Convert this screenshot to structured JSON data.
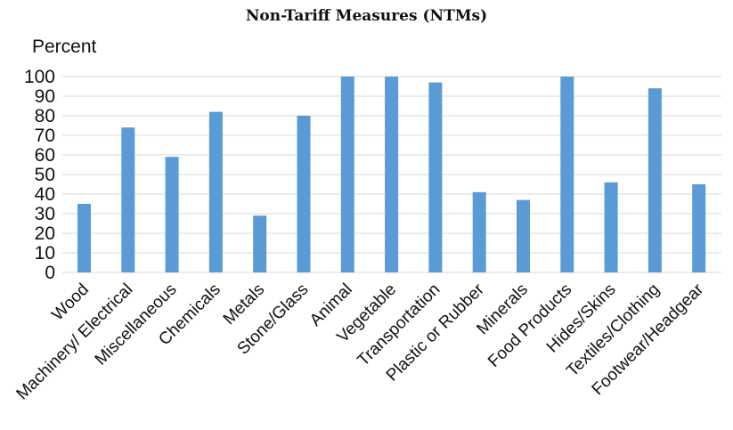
{
  "chart_data": {
    "type": "bar",
    "title": "Non-Tariff Measures (NTMs)",
    "xlabel": "",
    "ylabel": "Percent",
    "ylim": [
      0,
      100
    ],
    "yticks": [
      0,
      10,
      20,
      30,
      40,
      50,
      60,
      70,
      80,
      90,
      100
    ],
    "grid": true,
    "categories": [
      "Wood",
      "Machinery/ Electrical",
      "Miscellaneous",
      "Chemicals",
      "Metals",
      "Stone/Glass",
      "Animal",
      "Vegetable",
      "Transportation",
      "Plastic or Rubber",
      "Minerals",
      "Food Products",
      "Hides/Skins",
      "Textiles/Clothing",
      "Footwear/Headgear"
    ],
    "values": [
      35,
      74,
      59,
      82,
      29,
      80,
      100,
      100,
      97,
      41,
      37,
      100,
      46,
      94,
      45
    ],
    "bar_color": "#5b9bd5",
    "grid_color": "#d9d9d9"
  }
}
